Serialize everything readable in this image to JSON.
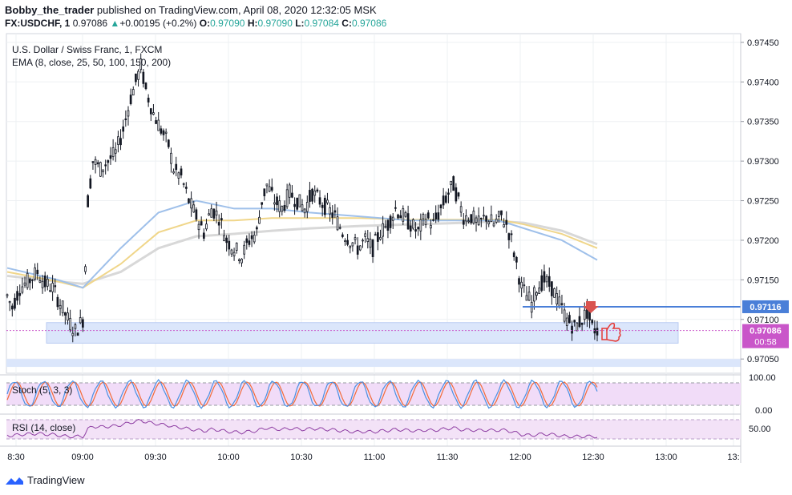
{
  "header": {
    "author": "Bobby_the_trader",
    "published_text": " published on TradingView.com, April 08, 2020 12:32:05 MSK",
    "symbol": "FX:USDCHF, 1",
    "last": "0.97086",
    "change": "+0.00195 (+0.2%)",
    "o_label": "O:",
    "o": "0.97090",
    "h_label": "H:",
    "h": "0.97090",
    "l_label": "L:",
    "l": "0.97084",
    "c_label": "C:",
    "c": "0.97086"
  },
  "legend": {
    "instrument": "U.S. Dollar / Swiss Franc, 1, FXCM",
    "ema": "EMA (8, close, 25, 50, 100, 150, 200)"
  },
  "colors": {
    "candle": "#131722",
    "ema_blue": "#9fc0ea",
    "ema_yellow": "#f0d68a",
    "ema_grey": "#d8d8d8",
    "zone": "#dbe6fb",
    "level": "#4a7fd8",
    "price_tag": "#c956c9",
    "stoch_k": "#4a90e2",
    "stoch_d": "#f26b3a",
    "stoch_band": "#f1dcf8",
    "rsi": "#8e3ea3",
    "rsi_band": "#f3e2f7",
    "arrow": "#d9534f",
    "thumb": "#e53935"
  },
  "chart_data": {
    "type": "candlestick",
    "y_ticks": [
      "0.97450",
      "0.97400",
      "0.97350",
      "0.97300",
      "0.97250",
      "0.97200",
      "0.97150",
      "0.97100",
      "0.97050"
    ],
    "ylim": [
      0.97032,
      0.97461
    ],
    "x_ticks": [
      "8:30",
      "09:00",
      "09:30",
      "10:00",
      "10:30",
      "11:00",
      "11:30",
      "12:00",
      "12:30",
      "13:00",
      "13:"
    ],
    "price_path": [
      [
        0,
        0.9713
      ],
      [
        2,
        0.97115
      ],
      [
        5,
        0.9714
      ],
      [
        9,
        0.9715
      ],
      [
        12,
        0.9716
      ],
      [
        15,
        0.97145
      ],
      [
        18,
        0.9714
      ],
      [
        21,
        0.9712
      ],
      [
        24,
        0.971
      ],
      [
        27,
        0.97085
      ],
      [
        30,
        0.971
      ],
      [
        31,
        0.9717
      ],
      [
        32,
        0.9725
      ],
      [
        34,
        0.973
      ],
      [
        37,
        0.9729
      ],
      [
        40,
        0.973
      ],
      [
        43,
        0.9731
      ],
      [
        46,
        0.9734
      ],
      [
        49,
        0.9738
      ],
      [
        51,
        0.974
      ],
      [
        53,
        0.9742
      ],
      [
        55,
        0.9739
      ],
      [
        58,
        0.9736
      ],
      [
        61,
        0.9734
      ],
      [
        64,
        0.9732
      ],
      [
        66,
        0.9729
      ],
      [
        69,
        0.9728
      ],
      [
        72,
        0.9725
      ],
      [
        75,
        0.9723
      ],
      [
        78,
        0.9721
      ],
      [
        81,
        0.9724
      ],
      [
        84,
        0.9723
      ],
      [
        87,
        0.972
      ],
      [
        90,
        0.9719
      ],
      [
        93,
        0.9718
      ],
      [
        96,
        0.972
      ],
      [
        99,
        0.9721
      ],
      [
        101,
        0.9725
      ],
      [
        103,
        0.9727
      ],
      [
        106,
        0.9725
      ],
      [
        109,
        0.9724
      ],
      [
        112,
        0.9726
      ],
      [
        115,
        0.9725
      ],
      [
        118,
        0.9724
      ],
      [
        121,
        0.9726
      ],
      [
        124,
        0.9725
      ],
      [
        127,
        0.9724
      ],
      [
        130,
        0.9723
      ],
      [
        133,
        0.9721
      ],
      [
        136,
        0.972
      ],
      [
        139,
        0.9719
      ],
      [
        142,
        0.972
      ],
      [
        145,
        0.9719
      ],
      [
        148,
        0.9721
      ],
      [
        151,
        0.9722
      ],
      [
        154,
        0.9724
      ],
      [
        157,
        0.9723
      ],
      [
        160,
        0.9722
      ],
      [
        163,
        0.9721
      ],
      [
        166,
        0.9723
      ],
      [
        169,
        0.9722
      ],
      [
        172,
        0.9724
      ],
      [
        175,
        0.9726
      ],
      [
        177,
        0.9727
      ],
      [
        179,
        0.9725
      ],
      [
        181,
        0.9723
      ],
      [
        184,
        0.9723
      ],
      [
        187,
        0.9722
      ],
      [
        190,
        0.9723
      ],
      [
        193,
        0.9722
      ],
      [
        196,
        0.9723
      ],
      [
        198,
        0.9722
      ],
      [
        200,
        0.972
      ],
      [
        202,
        0.9717
      ],
      [
        204,
        0.9714
      ],
      [
        206,
        0.9713
      ],
      [
        208,
        0.9712
      ],
      [
        210,
        0.9714
      ],
      [
        213,
        0.9715
      ],
      [
        216,
        0.9714
      ],
      [
        219,
        0.9712
      ],
      [
        222,
        0.971
      ],
      [
        225,
        0.9709
      ],
      [
        228,
        0.971
      ],
      [
        230,
        0.9711
      ],
      [
        232,
        0.9709
      ],
      [
        234,
        0.97086
      ]
    ],
    "ema_blue": [
      [
        0,
        0.97165
      ],
      [
        20,
        0.9715
      ],
      [
        30,
        0.9714
      ],
      [
        45,
        0.9719
      ],
      [
        60,
        0.97235
      ],
      [
        75,
        0.9725
      ],
      [
        90,
        0.9724
      ],
      [
        105,
        0.9724
      ],
      [
        120,
        0.97235
      ],
      [
        140,
        0.9723
      ],
      [
        160,
        0.97225
      ],
      [
        180,
        0.97225
      ],
      [
        195,
        0.97225
      ],
      [
        205,
        0.97215
      ],
      [
        220,
        0.972
      ],
      [
        234,
        0.97175
      ]
    ],
    "ema_yellow": [
      [
        0,
        0.9716
      ],
      [
        20,
        0.97148
      ],
      [
        30,
        0.9714
      ],
      [
        45,
        0.9717
      ],
      [
        60,
        0.9721
      ],
      [
        75,
        0.97225
      ],
      [
        90,
        0.97225
      ],
      [
        105,
        0.97228
      ],
      [
        120,
        0.97228
      ],
      [
        140,
        0.97228
      ],
      [
        160,
        0.97226
      ],
      [
        180,
        0.97226
      ],
      [
        195,
        0.97226
      ],
      [
        205,
        0.9722
      ],
      [
        220,
        0.97208
      ],
      [
        234,
        0.9719
      ]
    ],
    "ema_grey": [
      [
        0,
        0.97155
      ],
      [
        20,
        0.97148
      ],
      [
        30,
        0.97145
      ],
      [
        45,
        0.9716
      ],
      [
        60,
        0.9719
      ],
      [
        75,
        0.97205
      ],
      [
        90,
        0.97208
      ],
      [
        105,
        0.97212
      ],
      [
        120,
        0.97215
      ],
      [
        140,
        0.97218
      ],
      [
        160,
        0.9722
      ],
      [
        180,
        0.97222
      ],
      [
        195,
        0.97224
      ],
      [
        205,
        0.97222
      ],
      [
        220,
        0.97212
      ],
      [
        234,
        0.97195
      ]
    ],
    "level_line": {
      "value": 0.97116,
      "label": "0.97116"
    },
    "current_price": {
      "value": 0.97086,
      "label": "0.97086",
      "countdown": "00:58"
    },
    "zone": {
      "from": 0.9707,
      "to": 0.97096
    },
    "lower_zone": {
      "from": 0.9704,
      "to": 0.9705
    },
    "stoch": {
      "label": "Stoch (5, 3, 3)",
      "upper_tick": "100.00",
      "lower_tick": "0.00"
    },
    "rsi": {
      "label": "RSI (14, close)",
      "tick": "50.00"
    }
  },
  "footer": {
    "brand": "TradingView"
  }
}
